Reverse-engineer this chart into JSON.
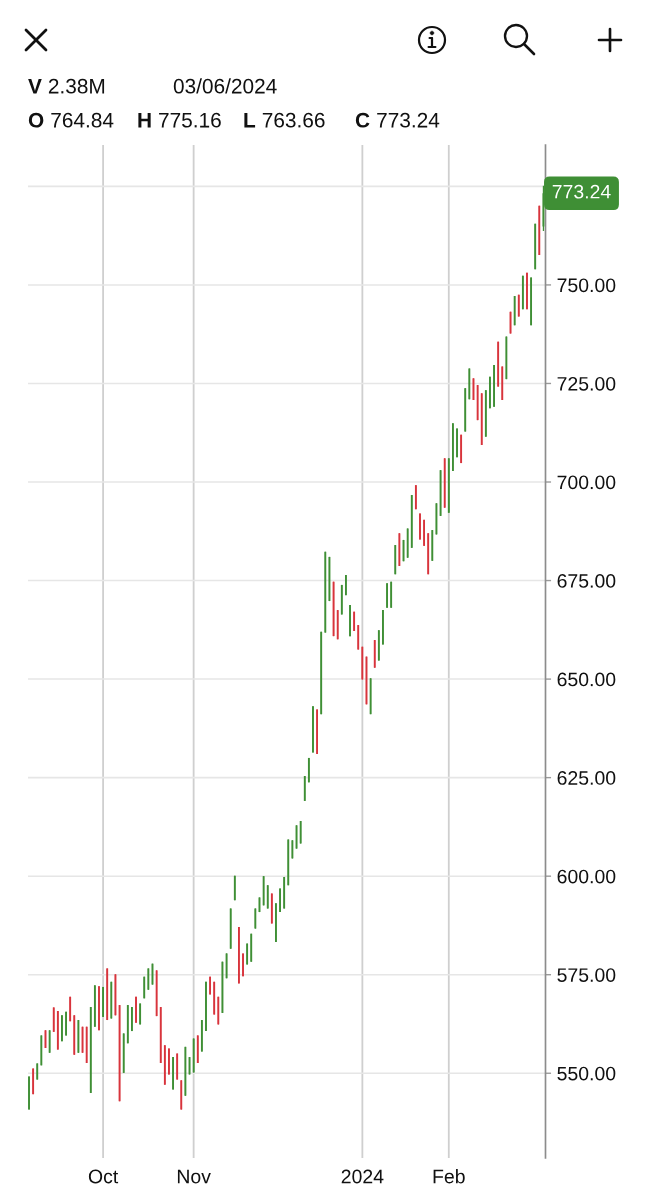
{
  "chart_data": {
    "type": "candlestick",
    "categories": [
      null,
      null,
      null,
      null,
      null,
      null,
      null,
      null,
      null,
      null,
      null,
      null,
      null,
      null,
      null,
      null,
      null,
      null,
      "Oct",
      null,
      null,
      null,
      null,
      null,
      null,
      null,
      null,
      null,
      null,
      null,
      null,
      null,
      null,
      null,
      null,
      null,
      null,
      null,
      null,
      null,
      "Nov",
      null,
      null,
      null,
      null,
      null,
      null,
      null,
      null,
      null,
      null,
      null,
      null,
      null,
      null,
      null,
      null,
      null,
      null,
      null,
      null,
      null,
      null,
      null,
      null,
      null,
      null,
      null,
      null,
      null,
      null,
      null,
      null,
      null,
      null,
      null,
      null,
      null,
      null,
      null,
      null,
      "2024",
      null,
      null,
      null,
      null,
      null,
      null,
      null,
      null,
      null,
      null,
      null,
      null,
      null,
      null,
      null,
      null,
      null,
      null,
      null,
      null,
      "Feb",
      null,
      null,
      null,
      null,
      null,
      null,
      null,
      null,
      null,
      null,
      null,
      null,
      null,
      null,
      null,
      null,
      null,
      null,
      null,
      null,
      null,
      null,
      null
    ],
    "ohlc": [
      [
        540.8,
        549.2,
        540.8,
        549.2
      ],
      [
        551.2,
        551.2,
        544.7,
        544.7
      ],
      [
        548.4,
        552.5,
        548.4,
        552.5
      ],
      [
        552.0,
        559.6,
        552.0,
        559.6
      ],
      [
        560.9,
        560.9,
        556.4,
        556.4
      ],
      [
        555.2,
        560.9,
        555.2,
        560.9
      ],
      [
        566.7,
        566.7,
        560.5,
        560.5
      ],
      [
        565.8,
        565.8,
        556.0,
        556.0
      ],
      [
        558.1,
        564.7,
        558.1,
        564.7
      ],
      [
        559.6,
        565.6,
        559.6,
        565.6
      ],
      [
        569.4,
        569.4,
        563.2,
        563.2
      ],
      [
        564.7,
        564.7,
        554.7,
        554.7
      ],
      [
        555.2,
        563.5,
        555.2,
        563.5
      ],
      [
        561.8,
        561.8,
        555.2,
        555.2
      ],
      [
        561.8,
        561.8,
        552.6,
        552.6
      ],
      [
        545.0,
        566.8,
        545.0,
        566.8
      ],
      [
        561.8,
        572.3,
        561.8,
        572.3
      ],
      [
        572.1,
        572.1,
        560.9,
        560.9
      ],
      [
        564.3,
        571.9,
        564.3,
        571.9
      ],
      [
        576.6,
        576.6,
        563.5,
        563.5
      ],
      [
        563.9,
        573.2,
        563.9,
        573.2
      ],
      [
        575.1,
        575.1,
        564.7,
        564.7
      ],
      [
        567.3,
        567.3,
        542.9,
        542.9
      ],
      [
        550.1,
        560.1,
        550.1,
        560.1
      ],
      [
        557.6,
        567.3,
        557.6,
        567.3
      ],
      [
        560.7,
        566.8,
        560.7,
        566.8
      ],
      [
        569.4,
        569.4,
        562.8,
        562.8
      ],
      [
        562.4,
        567.7,
        562.4,
        567.7
      ],
      [
        569.0,
        574.5,
        569.0,
        574.5
      ],
      [
        571.2,
        576.6,
        571.2,
        576.6
      ],
      [
        572.5,
        577.8,
        572.5,
        577.8
      ],
      [
        576.1,
        576.1,
        564.5,
        564.5
      ],
      [
        566.8,
        566.8,
        552.6,
        552.6
      ],
      [
        557.1,
        557.1,
        547.1,
        547.1
      ],
      [
        556.3,
        556.3,
        549.7,
        549.7
      ],
      [
        545.9,
        554.1,
        545.9,
        554.1
      ],
      [
        555.0,
        555.0,
        548.4,
        548.4
      ],
      [
        548.2,
        548.2,
        540.8,
        540.8
      ],
      [
        544.3,
        556.7,
        544.3,
        556.7
      ],
      [
        549.7,
        554.1,
        549.7,
        554.1
      ],
      [
        550.2,
        558.8,
        550.2,
        558.8
      ],
      [
        559.6,
        559.6,
        552.6,
        552.6
      ],
      [
        555.5,
        563.5,
        555.5,
        563.5
      ],
      [
        560.7,
        573.2,
        560.7,
        573.2
      ],
      [
        574.5,
        574.5,
        570.0,
        570.0
      ],
      [
        573.2,
        573.2,
        564.9,
        564.9
      ],
      [
        569.4,
        569.4,
        562.4,
        562.4
      ],
      [
        565.3,
        578.3,
        565.3,
        578.3
      ],
      [
        574.1,
        580.4,
        574.1,
        580.4
      ],
      [
        581.6,
        591.8,
        581.6,
        591.8
      ],
      [
        593.9,
        600.1,
        593.9,
        600.1
      ],
      [
        587.1,
        587.1,
        572.8,
        572.8
      ],
      [
        580.4,
        580.4,
        574.6,
        574.6
      ],
      [
        577.6,
        582.9,
        577.6,
        582.9
      ],
      [
        578.3,
        585.4,
        578.3,
        585.4
      ],
      [
        586.7,
        591.8,
        586.7,
        591.8
      ],
      [
        590.9,
        594.6,
        590.9,
        594.6
      ],
      [
        592.6,
        600.0,
        592.6,
        600.0
      ],
      [
        591.8,
        597.7,
        591.8,
        597.7
      ],
      [
        595.6,
        595.6,
        588.0,
        588.0
      ],
      [
        583.3,
        593.1,
        583.3,
        593.1
      ],
      [
        590.9,
        596.9,
        590.9,
        596.9
      ],
      [
        591.8,
        599.8,
        591.8,
        599.8
      ],
      [
        597.7,
        609.3,
        597.7,
        609.3
      ],
      [
        604.5,
        609.1,
        604.5,
        609.1
      ],
      [
        607.0,
        612.9,
        607.0,
        612.9
      ],
      [
        608.3,
        614.0,
        608.3,
        614.0
      ],
      [
        619.1,
        625.4,
        619.1,
        625.4
      ],
      [
        623.8,
        630.0,
        623.8,
        630.0
      ],
      [
        631.4,
        643.1,
        631.4,
        643.1
      ],
      [
        642.3,
        642.3,
        631.0,
        631.0
      ],
      [
        641.1,
        662.0,
        641.1,
        662.0
      ],
      [
        661.8,
        682.3,
        661.8,
        682.3
      ],
      [
        669.8,
        681.0,
        669.8,
        681.0
      ],
      [
        674.7,
        674.7,
        660.9,
        660.9
      ],
      [
        667.5,
        667.5,
        660.1,
        660.1
      ],
      [
        666.4,
        673.9,
        666.4,
        673.9
      ],
      [
        671.3,
        676.4,
        671.3,
        676.4
      ],
      [
        660.9,
        668.8,
        660.9,
        668.8
      ],
      [
        667.1,
        667.1,
        662.2,
        662.2
      ],
      [
        663.7,
        663.7,
        657.5,
        657.5
      ],
      [
        658.2,
        658.2,
        649.9,
        649.9
      ],
      [
        655.7,
        655.7,
        643.6,
        643.6
      ],
      [
        641.1,
        650.2,
        641.1,
        650.2
      ],
      [
        659.9,
        659.9,
        652.9,
        652.9
      ],
      [
        654.7,
        662.4,
        654.7,
        662.4
      ],
      [
        658.8,
        667.5,
        658.8,
        667.5
      ],
      [
        668.1,
        674.3,
        668.1,
        674.3
      ],
      [
        668.1,
        674.7,
        668.1,
        674.7
      ],
      [
        676.6,
        684.0,
        676.6,
        684.0
      ],
      [
        687.0,
        687.0,
        678.7,
        678.7
      ],
      [
        679.9,
        685.3,
        679.9,
        685.3
      ],
      [
        680.8,
        688.2,
        680.8,
        688.2
      ],
      [
        683.3,
        696.7,
        683.3,
        696.7
      ],
      [
        699.2,
        699.2,
        693.1,
        693.1
      ],
      [
        692.0,
        692.0,
        685.4,
        685.4
      ],
      [
        690.4,
        690.4,
        683.8,
        683.8
      ],
      [
        687.0,
        687.0,
        676.6,
        676.6
      ],
      [
        680.0,
        687.8,
        680.0,
        687.8
      ],
      [
        686.7,
        694.6,
        686.7,
        694.6
      ],
      [
        691.4,
        703.0,
        691.4,
        703.0
      ],
      [
        706.0,
        706.0,
        693.5,
        693.5
      ],
      [
        692.2,
        706.0,
        692.2,
        706.0
      ],
      [
        702.8,
        714.9,
        702.8,
        714.9
      ],
      [
        706.3,
        713.6,
        706.3,
        713.6
      ],
      [
        712.0,
        712.0,
        704.8,
        704.8
      ],
      [
        712.8,
        723.8,
        712.8,
        723.8
      ],
      [
        721.0,
        728.8,
        721.0,
        728.8
      ],
      [
        726.3,
        726.3,
        720.8,
        720.8
      ],
      [
        724.6,
        724.6,
        715.7,
        715.7
      ],
      [
        722.5,
        722.5,
        709.4,
        709.4
      ],
      [
        711.5,
        723.3,
        711.5,
        723.3
      ],
      [
        718.7,
        726.7,
        718.7,
        726.7
      ],
      [
        719.1,
        729.7,
        719.1,
        729.7
      ],
      [
        735.6,
        735.6,
        724.2,
        724.2
      ],
      [
        729.3,
        729.3,
        720.8,
        720.8
      ],
      [
        726.1,
        736.9,
        726.1,
        736.9
      ],
      [
        743.2,
        743.2,
        737.7,
        737.7
      ],
      [
        739.8,
        747.2,
        739.8,
        747.2
      ],
      [
        747.5,
        747.5,
        742.0,
        742.0
      ],
      [
        743.8,
        752.3,
        743.8,
        752.3
      ],
      [
        753.1,
        753.1,
        743.8,
        743.8
      ],
      [
        739.8,
        751.9,
        739.8,
        751.9
      ],
      [
        754.0,
        765.5,
        754.0,
        765.5
      ],
      [
        770.1,
        770.1,
        757.6,
        757.6
      ],
      [
        764.84,
        775.16,
        763.66,
        773.24
      ]
    ],
    "colors": [
      "#3f8f35",
      "#d8343c",
      "#3f8f35",
      "#3f8f35",
      "#d8343c",
      "#3f8f35",
      "#d8343c",
      "#d8343c",
      "#3f8f35",
      "#3f8f35",
      "#d8343c",
      "#d8343c",
      "#3f8f35",
      "#d8343c",
      "#d8343c",
      "#3f8f35",
      "#3f8f35",
      "#d8343c",
      "#3f8f35",
      "#d8343c",
      "#3f8f35",
      "#d8343c",
      "#d8343c",
      "#3f8f35",
      "#3f8f35",
      "#3f8f35",
      "#d8343c",
      "#3f8f35",
      "#3f8f35",
      "#3f8f35",
      "#3f8f35",
      "#d8343c",
      "#d8343c",
      "#d8343c",
      "#d8343c",
      "#3f8f35",
      "#d8343c",
      "#d8343c",
      "#3f8f35",
      "#3f8f35",
      "#3f8f35",
      "#d8343c",
      "#3f8f35",
      "#3f8f35",
      "#d8343c",
      "#d8343c",
      "#d8343c",
      "#3f8f35",
      "#3f8f35",
      "#3f8f35",
      "#3f8f35",
      "#d8343c",
      "#d8343c",
      "#3f8f35",
      "#3f8f35",
      "#3f8f35",
      "#3f8f35",
      "#3f8f35",
      "#3f8f35",
      "#d8343c",
      "#3f8f35",
      "#3f8f35",
      "#3f8f35",
      "#3f8f35",
      "#3f8f35",
      "#3f8f35",
      "#3f8f35",
      "#3f8f35",
      "#3f8f35",
      "#3f8f35",
      "#d8343c",
      "#3f8f35",
      "#3f8f35",
      "#3f8f35",
      "#d8343c",
      "#d8343c",
      "#3f8f35",
      "#3f8f35",
      "#3f8f35",
      "#d8343c",
      "#d8343c",
      "#d8343c",
      "#d8343c",
      "#3f8f35",
      "#d8343c",
      "#3f8f35",
      "#3f8f35",
      "#3f8f35",
      "#3f8f35",
      "#3f8f35",
      "#d8343c",
      "#3f8f35",
      "#3f8f35",
      "#3f8f35",
      "#d8343c",
      "#d8343c",
      "#d8343c",
      "#d8343c",
      "#3f8f35",
      "#3f8f35",
      "#3f8f35",
      "#d8343c",
      "#3f8f35",
      "#3f8f35",
      "#3f8f35",
      "#d8343c",
      "#3f8f35",
      "#3f8f35",
      "#d8343c",
      "#d8343c",
      "#d8343c",
      "#3f8f35",
      "#3f8f35",
      "#3f8f35",
      "#d8343c",
      "#d8343c",
      "#3f8f35",
      "#d8343c",
      "#3f8f35",
      "#d8343c",
      "#3f8f35",
      "#d8343c",
      "#3f8f35",
      "#3f8f35",
      "#d8343c",
      "#3f8f35"
    ],
    "ylim": [
      528.5,
      785.5
    ],
    "yticks": [
      {
        "value": 550,
        "label": "550.00"
      },
      {
        "value": 575,
        "label": "575.00"
      },
      {
        "value": 600,
        "label": "600.00"
      },
      {
        "value": 625,
        "label": "625.00"
      },
      {
        "value": 650,
        "label": "650.00"
      },
      {
        "value": 675,
        "label": "675.00"
      },
      {
        "value": 700,
        "label": "700.00"
      },
      {
        "value": 725,
        "label": "725.00"
      },
      {
        "value": 750,
        "label": "750.00"
      },
      {
        "value": 775,
        "label": null
      }
    ],
    "grid": true,
    "annotations": [
      "V 2.38M",
      "03/06/2024",
      "O 764.84",
      "H 775.16",
      "L 763.66",
      "C 773.24",
      "773.24"
    ]
  }
}
